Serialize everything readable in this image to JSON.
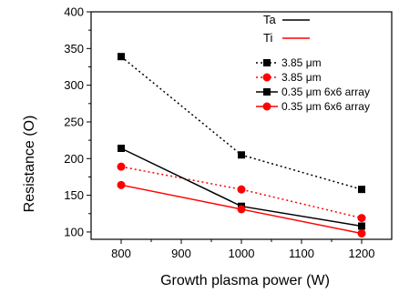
{
  "chart_data": {
    "type": "line",
    "xlabel": "Growth plasma power (W)",
    "ylabel": "Resistance (O)",
    "xlim": [
      750,
      1250
    ],
    "ylim": [
      90,
      400
    ],
    "x_ticks": [
      800,
      900,
      1000,
      1100,
      1200
    ],
    "y_ticks": [
      100,
      150,
      200,
      250,
      300,
      350,
      400
    ],
    "grid": false,
    "legend_placement": "top-right",
    "material_legend": [
      {
        "name": "Ta",
        "color": "#000000"
      },
      {
        "name": "Ti",
        "color": "#ff0000"
      }
    ],
    "series": [
      {
        "name": "3.85 μm",
        "color": "#000000",
        "dashed": true,
        "marker": "square",
        "x": [
          800,
          1000,
          1200
        ],
        "values": [
          339,
          205,
          158
        ]
      },
      {
        "name": "3.85 μm",
        "color": "#ff0000",
        "dashed": true,
        "marker": "circle",
        "x": [
          800,
          1000,
          1200
        ],
        "values": [
          189,
          158,
          119
        ]
      },
      {
        "name": "0.35 μm 6x6 array",
        "color": "#000000",
        "dashed": false,
        "marker": "square",
        "x": [
          800,
          1000,
          1200
        ],
        "values": [
          214,
          135,
          108
        ]
      },
      {
        "name": "0.35 μm 6x6 array",
        "color": "#ff0000",
        "dashed": false,
        "marker": "circle",
        "x": [
          800,
          1000,
          1200
        ],
        "values": [
          164,
          131,
          98
        ]
      }
    ]
  }
}
